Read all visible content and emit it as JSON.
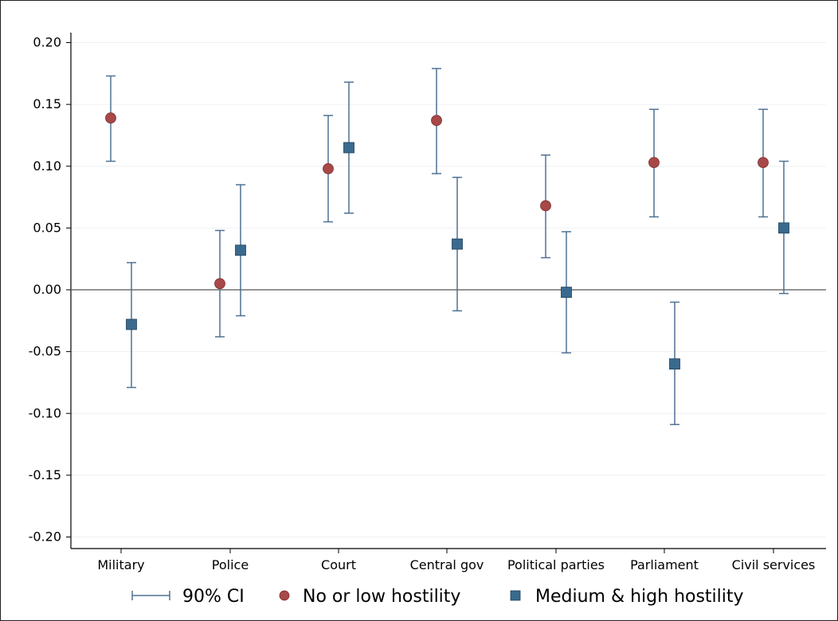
{
  "chart_data": {
    "type": "scatter",
    "title": "",
    "xlabel": "",
    "ylabel": "",
    "ylim": [
      -0.2,
      0.2
    ],
    "yticks": [
      "0.20",
      "0.15",
      "0.10",
      "0.05",
      "0.00",
      "-0.05",
      "-0.10",
      "-0.15",
      "-0.20"
    ],
    "ytick_values": [
      0.2,
      0.15,
      0.1,
      0.05,
      0.0,
      -0.05,
      -0.1,
      -0.15,
      -0.2
    ],
    "categories": [
      "Military",
      "Police",
      "Court",
      "Central gov",
      "Political parties",
      "Parliament",
      "Civil services"
    ],
    "grid": true,
    "reference_line": 0.0,
    "series": [
      {
        "name": "No or low hostility",
        "marker": "circle",
        "color": "#a84848",
        "values": [
          0.139,
          0.005,
          0.098,
          0.137,
          0.068,
          0.103,
          0.103
        ],
        "ci_low": [
          0.104,
          -0.038,
          0.055,
          0.094,
          0.026,
          0.059,
          0.059
        ],
        "ci_high": [
          0.173,
          0.048,
          0.141,
          0.179,
          0.109,
          0.146,
          0.146
        ]
      },
      {
        "name": "Medium & high hostility",
        "marker": "square",
        "color": "#3a6a8e",
        "values": [
          -0.028,
          0.032,
          0.115,
          0.037,
          -0.002,
          -0.06,
          0.05
        ],
        "ci_low": [
          -0.079,
          -0.021,
          0.062,
          -0.017,
          -0.051,
          -0.109,
          -0.003
        ],
        "ci_high": [
          0.022,
          0.085,
          0.168,
          0.091,
          0.047,
          -0.01,
          0.104
        ]
      }
    ],
    "ci_label": "90% CI",
    "ci_color": "#4f7293",
    "legend_position": "bottom"
  }
}
